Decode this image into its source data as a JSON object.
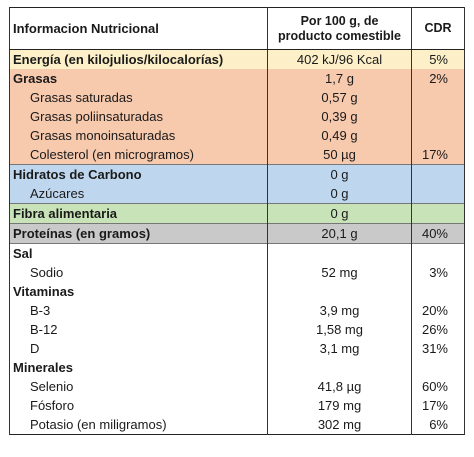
{
  "header": {
    "title": "Informacion Nutricional",
    "per_line1": "Por 100 g, de",
    "per_line2": "producto comestible",
    "cdr": "CDR"
  },
  "rows": [
    {
      "name": "Energía (en kilojulios/kilocalorías)",
      "amount": "402 kJ/96 Kcal",
      "cdr": "5%"
    },
    {
      "name": "Grasas",
      "amount": "1,7 g",
      "cdr": "2%"
    },
    {
      "name": "Grasas saturadas",
      "amount": "0,57 g",
      "cdr": ""
    },
    {
      "name": "Grasas poliinsaturadas",
      "amount": "0,39 g",
      "cdr": ""
    },
    {
      "name": "Grasas monoinsaturadas",
      "amount": "0,49 g",
      "cdr": ""
    },
    {
      "name": "Colesterol (en microgramos)",
      "amount": "50  µg",
      "cdr": "17%"
    },
    {
      "name": "Hidratos de Carbono",
      "amount": "0 g",
      "cdr": ""
    },
    {
      "name": "Azúcares",
      "amount": "0 g",
      "cdr": ""
    },
    {
      "name": "Fibra alimentaria",
      "amount": "0 g",
      "cdr": ""
    },
    {
      "name": "Proteínas (en gramos)",
      "amount": "20,1 g",
      "cdr": "40%"
    },
    {
      "name": "Sal",
      "amount": "",
      "cdr": ""
    },
    {
      "name": "Sodio",
      "amount": "52 mg",
      "cdr": "3%"
    },
    {
      "name": "Vitaminas",
      "amount": "",
      "cdr": ""
    },
    {
      "name": "B-3",
      "amount": "3,9 mg",
      "cdr": "20%"
    },
    {
      "name": "B-12",
      "amount": "1,58 mg",
      "cdr": "26%"
    },
    {
      "name": "D",
      "amount": "3,1 mg",
      "cdr": "31%"
    },
    {
      "name": "Minerales",
      "amount": "",
      "cdr": ""
    },
    {
      "name": "Selenio",
      "amount": "41,8 µg",
      "cdr": "60%"
    },
    {
      "name": "Fósforo",
      "amount": "179 mg",
      "cdr": "17%"
    },
    {
      "name": "Potasio (en miligramos)",
      "amount": "302 mg",
      "cdr": "6%"
    }
  ],
  "colors": {
    "energy": "#fdf0c8",
    "fats": "#f7c9ad",
    "carbohydrates": "#bfd7ee",
    "fiber": "#c8e3b7",
    "protein": "#c9c9c9"
  }
}
